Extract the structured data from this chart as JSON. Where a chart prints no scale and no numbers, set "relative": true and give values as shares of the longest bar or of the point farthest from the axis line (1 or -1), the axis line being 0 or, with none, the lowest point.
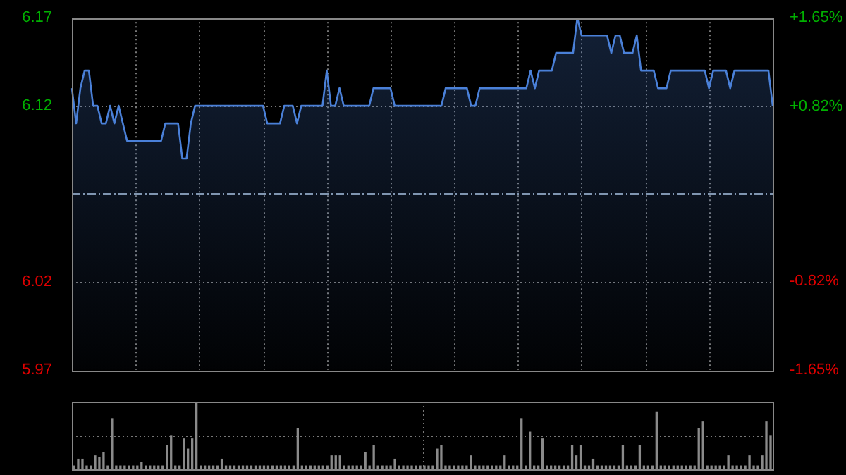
{
  "chart_data": [
    {
      "type": "area",
      "categories": [
        null,
        null,
        null,
        null,
        null,
        null,
        null,
        null,
        null,
        null,
        null,
        null,
        null,
        null,
        null,
        null,
        null,
        null,
        null,
        null,
        null,
        null,
        null,
        null,
        null,
        null,
        null,
        null,
        null,
        null,
        null,
        null,
        null,
        null,
        null,
        null,
        null,
        null,
        null,
        null,
        null,
        null,
        null,
        null,
        null,
        null,
        null,
        null,
        null,
        null,
        null,
        null,
        null,
        null,
        null,
        null,
        null,
        null,
        null,
        null,
        null,
        null,
        null,
        null,
        null,
        null,
        null,
        null,
        null,
        null,
        null,
        null,
        null,
        null,
        null,
        null,
        null,
        null,
        null,
        null,
        null,
        null,
        null,
        null,
        null,
        null,
        null,
        null,
        null,
        null,
        null,
        null,
        null,
        null,
        null,
        null,
        null,
        null,
        null,
        null,
        null,
        null,
        null,
        null,
        null,
        null,
        null,
        null,
        null,
        null,
        null,
        null,
        null,
        null,
        null,
        null,
        null,
        null,
        null,
        null,
        null,
        null,
        null,
        null,
        null,
        null,
        null,
        null,
        null,
        null,
        null,
        null,
        null,
        null,
        null,
        null,
        null,
        null,
        null,
        null,
        null,
        null,
        null,
        null,
        null,
        null,
        null,
        null,
        null,
        null,
        null,
        null,
        null,
        null,
        null,
        null,
        null,
        null,
        null,
        null,
        null,
        null,
        null,
        null,
        null,
        null
      ],
      "series": [
        {
          "color": "#4a80d8",
          "values": [
            6.13,
            6.11,
            6.13,
            6.14,
            6.14,
            6.12,
            6.12,
            6.11,
            6.11,
            6.12,
            6.11,
            6.12,
            6.11,
            6.1,
            6.1,
            6.1,
            6.1,
            6.1,
            6.1,
            6.1,
            6.1,
            6.1,
            6.11,
            6.11,
            6.11,
            6.11,
            6.09,
            6.09,
            6.11,
            6.12,
            6.12,
            6.12,
            6.12,
            6.12,
            6.12,
            6.12,
            6.12,
            6.12,
            6.12,
            6.12,
            6.12,
            6.12,
            6.12,
            6.12,
            6.12,
            6.12,
            6.11,
            6.11,
            6.11,
            6.11,
            6.12,
            6.12,
            6.12,
            6.11,
            6.12,
            6.12,
            6.12,
            6.12,
            6.12,
            6.12,
            6.14,
            6.12,
            6.12,
            6.13,
            6.12,
            6.12,
            6.12,
            6.12,
            6.12,
            6.12,
            6.12,
            6.13,
            6.13,
            6.13,
            6.13,
            6.13,
            6.12,
            6.12,
            6.12,
            6.12,
            6.12,
            6.12,
            6.12,
            6.12,
            6.12,
            6.12,
            6.12,
            6.12,
            6.13,
            6.13,
            6.13,
            6.13,
            6.13,
            6.13,
            6.12,
            6.12,
            6.13,
            6.13,
            6.13,
            6.13,
            6.13,
            6.13,
            6.13,
            6.13,
            6.13,
            6.13,
            6.13,
            6.13,
            6.14,
            6.13,
            6.14,
            6.14,
            6.14,
            6.14,
            6.15,
            6.15,
            6.15,
            6.15,
            6.15,
            6.17,
            6.16,
            6.16,
            6.16,
            6.16,
            6.16,
            6.16,
            6.16,
            6.15,
            6.16,
            6.16,
            6.15,
            6.15,
            6.15,
            6.16,
            6.14,
            6.14,
            6.14,
            6.14,
            6.13,
            6.13,
            6.13,
            6.14,
            6.14,
            6.14,
            6.14,
            6.14,
            6.14,
            6.14,
            6.14,
            6.14,
            6.13,
            6.14,
            6.14,
            6.14,
            6.14,
            6.13,
            6.14,
            6.14,
            6.14,
            6.14,
            6.14,
            6.14,
            6.14,
            6.14,
            6.14,
            6.12
          ]
        }
      ],
      "ylim": [
        5.97,
        6.17
      ],
      "yticks": [
        5.97,
        6.02,
        6.12,
        6.17
      ],
      "y2lim": [
        -1.65,
        1.65
      ],
      "y2ticks": [
        {
          "value": -1.65,
          "label": "-1.65%"
        },
        {
          "value": -0.82,
          "label": "-0.82%"
        },
        {
          "value": 0.82,
          "label": "+0.82%"
        },
        {
          "value": 1.65,
          "label": "+1.65%"
        }
      ],
      "ref_lines": [
        {
          "axis": "y",
          "value": 6.07,
          "line_style": "dashed",
          "color": "#8899aa"
        }
      ],
      "grid": true,
      "legend": false,
      "marker": "none"
    },
    {
      "type": "bar",
      "relative": true,
      "categories": [
        null,
        null,
        null,
        null,
        null,
        null,
        null,
        null,
        null,
        null,
        null,
        null,
        null,
        null,
        null,
        null,
        null,
        null,
        null,
        null,
        null,
        null,
        null,
        null,
        null,
        null,
        null,
        null,
        null,
        null,
        null,
        null,
        null,
        null,
        null,
        null,
        null,
        null,
        null,
        null,
        null,
        null,
        null,
        null,
        null,
        null,
        null,
        null,
        null,
        null,
        null,
        null,
        null,
        null,
        null,
        null,
        null,
        null,
        null,
        null,
        null,
        null,
        null,
        null,
        null,
        null,
        null,
        null,
        null,
        null,
        null,
        null,
        null,
        null,
        null,
        null,
        null,
        null,
        null,
        null,
        null,
        null,
        null,
        null,
        null,
        null,
        null,
        null,
        null,
        null,
        null,
        null,
        null,
        null,
        null,
        null,
        null,
        null,
        null,
        null,
        null,
        null,
        null,
        null,
        null,
        null,
        null,
        null,
        null,
        null,
        null,
        null,
        null,
        null,
        null,
        null,
        null,
        null,
        null,
        null,
        null,
        null,
        null,
        null,
        null,
        null,
        null,
        null,
        null,
        null,
        null,
        null,
        null,
        null,
        null,
        null,
        null,
        null,
        null,
        null,
        null,
        null,
        null,
        null,
        null,
        null,
        null,
        null,
        null,
        null,
        null,
        null,
        null,
        null,
        null,
        null,
        null,
        null,
        null,
        null,
        null,
        null,
        null,
        null,
        null,
        null
      ],
      "series": [
        {
          "color": "#8a8a8a",
          "values": [
            0.05,
            0.15,
            0.15,
            0.05,
            0.05,
            0.2,
            0.18,
            0.25,
            0.05,
            0.75,
            0.05,
            0.05,
            0.05,
            0.05,
            0.05,
            0.05,
            0.1,
            0.05,
            0.05,
            0.05,
            0.05,
            0.05,
            0.35,
            0.5,
            0.05,
            0.05,
            0.45,
            0.3,
            0.45,
            1,
            0.05,
            0.05,
            0.05,
            0.05,
            0.05,
            0.15,
            0.05,
            0.05,
            0.05,
            0.05,
            0.05,
            0.05,
            0.05,
            0.05,
            0.05,
            0.05,
            0.05,
            0.05,
            0.05,
            0.05,
            0.05,
            0.05,
            0.05,
            0.6,
            0.05,
            0.05,
            0.05,
            0.05,
            0.05,
            0.05,
            0.05,
            0.2,
            0.2,
            0.2,
            0.05,
            0.05,
            0.05,
            0.05,
            0.05,
            0.25,
            0.05,
            0.35,
            0.05,
            0.05,
            0.05,
            0.05,
            0.15,
            0.05,
            0.05,
            0.05,
            0.05,
            0.05,
            0.05,
            0.05,
            0.05,
            0.05,
            0.3,
            0.35,
            0.05,
            0.05,
            0.05,
            0.05,
            0.05,
            0.05,
            0.2,
            0.05,
            0.05,
            0.05,
            0.05,
            0.05,
            0.05,
            0.05,
            0.2,
            0.05,
            0.05,
            0.05,
            0.75,
            0.05,
            0.55,
            0.05,
            0.05,
            0.45,
            0.05,
            0.05,
            0.05,
            0.05,
            0.05,
            0.05,
            0.35,
            0.2,
            0.35,
            0.05,
            0.05,
            0.15,
            0.05,
            0.05,
            0.05,
            0.05,
            0.05,
            0.05,
            0.35,
            0.05,
            0.05,
            0.05,
            0.35,
            0.05,
            0.05,
            0.05,
            0.85,
            0.05,
            0.05,
            0.05,
            0.05,
            0.05,
            0.05,
            0.05,
            0.05,
            0.05,
            0.6,
            0.7,
            0.05,
            0.05,
            0.05,
            0.05,
            0.05,
            0.2,
            0.05,
            0.05,
            0.05,
            0.05,
            0.2,
            0.05,
            0.05,
            0.2,
            0.7,
            0.5
          ]
        }
      ],
      "grid": true,
      "legend": false
    }
  ]
}
